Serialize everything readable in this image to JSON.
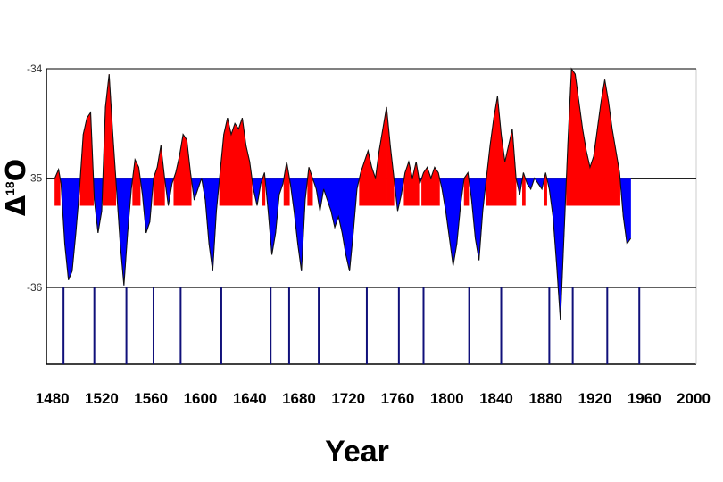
{
  "chart_data": {
    "type": "area",
    "xlabel": "Year",
    "ylabel": {
      "prefix": "Δ",
      "superscript": "18",
      "suffix": "O"
    },
    "baseline": -35,
    "ylim": [
      -36.7,
      -34
    ],
    "xlim": [
      1465,
      2000
    ],
    "y_gridlines": [
      -34,
      -35,
      -36
    ],
    "y_tick_labels": [
      "-34",
      "-35",
      "-36"
    ],
    "x_ticks": [
      1480,
      1520,
      1560,
      1600,
      1640,
      1680,
      1720,
      1760,
      1800,
      1840,
      1880,
      1920,
      1960,
      2000
    ],
    "positive_color": "#ff0000",
    "negative_color": "#0000ff",
    "positive_band_top": -35,
    "positive_band_bottom": -35.25,
    "x": [
      1482,
      1485,
      1487,
      1490,
      1493,
      1496,
      1499,
      1502,
      1505,
      1508,
      1511,
      1514,
      1517,
      1520,
      1523,
      1526,
      1529,
      1532,
      1535,
      1538,
      1541,
      1544,
      1547,
      1550,
      1553,
      1556,
      1559,
      1562,
      1565,
      1568,
      1571,
      1574,
      1577,
      1580,
      1583,
      1586,
      1589,
      1592,
      1595,
      1598,
      1601,
      1604,
      1607,
      1610,
      1613,
      1616,
      1619,
      1622,
      1625,
      1628,
      1631,
      1634,
      1637,
      1640,
      1643,
      1646,
      1649,
      1652,
      1655,
      1658,
      1661,
      1664,
      1667,
      1670,
      1673,
      1676,
      1679,
      1682,
      1685,
      1688,
      1691,
      1694,
      1697,
      1700,
      1703,
      1706,
      1709,
      1712,
      1715,
      1718,
      1721,
      1724,
      1727,
      1730,
      1733,
      1736,
      1739,
      1742,
      1745,
      1748,
      1751,
      1754,
      1757,
      1760,
      1763,
      1766,
      1769,
      1772,
      1775,
      1778,
      1781,
      1784,
      1787,
      1790,
      1793,
      1796,
      1799,
      1802,
      1805,
      1808,
      1811,
      1814,
      1817,
      1820,
      1823,
      1826,
      1829,
      1832,
      1835,
      1838,
      1841,
      1844,
      1847,
      1850,
      1853,
      1856,
      1859,
      1862,
      1865,
      1868,
      1871,
      1874,
      1877,
      1880,
      1883,
      1886,
      1889,
      1892,
      1895,
      1898,
      1901,
      1904,
      1907,
      1910,
      1913,
      1916,
      1919,
      1922,
      1925,
      1928,
      1931,
      1934,
      1937,
      1940,
      1943,
      1946,
      1949
    ],
    "y": [
      -35.0,
      -34.92,
      -35.05,
      -35.6,
      -35.93,
      -35.85,
      -35.5,
      -35.1,
      -34.6,
      -34.45,
      -34.4,
      -35.2,
      -35.5,
      -35.3,
      -34.35,
      -34.05,
      -34.6,
      -35.1,
      -35.6,
      -35.98,
      -35.5,
      -35.1,
      -34.83,
      -34.9,
      -35.15,
      -35.5,
      -35.4,
      -35.0,
      -34.9,
      -34.7,
      -35.0,
      -35.25,
      -35.05,
      -34.95,
      -34.8,
      -34.6,
      -34.65,
      -34.95,
      -35.2,
      -35.1,
      -35.0,
      -35.2,
      -35.6,
      -35.85,
      -35.3,
      -34.95,
      -34.6,
      -34.45,
      -34.6,
      -34.5,
      -34.55,
      -34.45,
      -34.7,
      -34.85,
      -35.1,
      -35.25,
      -35.05,
      -34.95,
      -35.3,
      -35.7,
      -35.5,
      -35.15,
      -35.05,
      -34.85,
      -35.05,
      -35.3,
      -35.6,
      -35.85,
      -35.2,
      -34.9,
      -35.0,
      -35.1,
      -35.3,
      -35.1,
      -35.2,
      -35.3,
      -35.45,
      -35.35,
      -35.5,
      -35.7,
      -35.85,
      -35.5,
      -35.1,
      -34.95,
      -34.85,
      -34.75,
      -34.9,
      -35.0,
      -34.75,
      -34.55,
      -34.35,
      -34.7,
      -35.0,
      -35.3,
      -35.15,
      -34.95,
      -34.85,
      -35.0,
      -34.85,
      -35.05,
      -34.95,
      -34.9,
      -35.0,
      -34.9,
      -34.95,
      -35.1,
      -35.3,
      -35.55,
      -35.8,
      -35.6,
      -35.25,
      -35.0,
      -34.95,
      -35.2,
      -35.55,
      -35.75,
      -35.3,
      -35.0,
      -34.7,
      -34.45,
      -34.25,
      -34.6,
      -34.85,
      -34.7,
      -34.55,
      -35.0,
      -35.15,
      -34.95,
      -35.05,
      -35.1,
      -35.0,
      -35.05,
      -35.1,
      -34.95,
      -35.1,
      -35.35,
      -35.8,
      -36.3,
      -35.5,
      -34.7,
      -34.0,
      -34.05,
      -34.3,
      -34.55,
      -34.75,
      -34.9,
      -34.8,
      -34.55,
      -34.3,
      -34.1,
      -34.3,
      -34.55,
      -34.75,
      -34.95,
      -35.35,
      -35.6,
      -35.55
    ],
    "bars": [
      1489,
      1514,
      1540,
      1562,
      1584,
      1617,
      1657,
      1672,
      1696,
      1735,
      1761,
      1781,
      1818,
      1844,
      1883,
      1902,
      1930,
      1956
    ]
  }
}
